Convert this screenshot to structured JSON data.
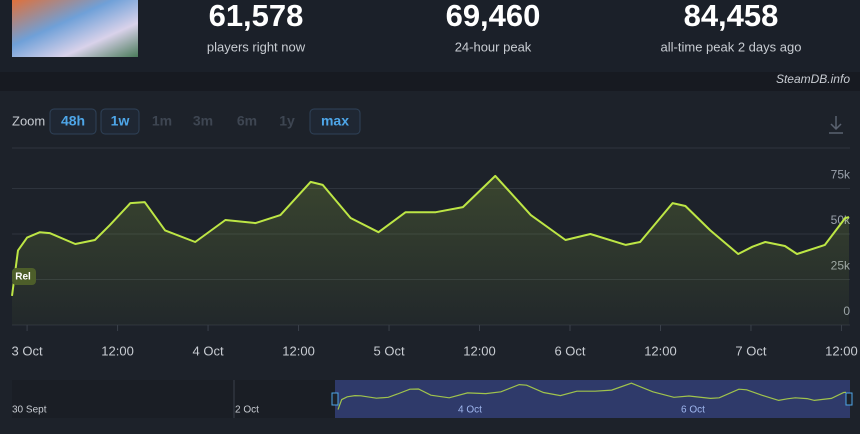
{
  "header": {
    "stats": [
      {
        "value": "61,578",
        "label": "players right now"
      },
      {
        "value": "69,460",
        "label": "24-hour peak"
      },
      {
        "value": "84,458",
        "label": "all-time peak 2 days ago"
      }
    ],
    "watermark": "SteamDB.info"
  },
  "zoom": {
    "label": "Zoom",
    "options": [
      "48h",
      "1w",
      "1m",
      "3m",
      "6m",
      "1y",
      "max"
    ],
    "active": [
      "48h",
      "1w",
      "max"
    ]
  },
  "navigator": {
    "labels": [
      {
        "value": -60,
        "label": "30 Sept"
      },
      {
        "value": -12,
        "label": "2 Oct"
      },
      {
        "value": 36,
        "label": "4 Oct"
      },
      {
        "value": 84,
        "label": "6 Oct"
      }
    ]
  },
  "chart_data": {
    "type": "line",
    "annotation": "Rel",
    "x": [
      -2,
      -1.2,
      0,
      1.7,
      3,
      6.4,
      9,
      11,
      13.7,
      15.6,
      18.3,
      22.3,
      26.3,
      30.3,
      33.6,
      37.6,
      39.2,
      42.9,
      46.6,
      50.2,
      54.2,
      57.8,
      62.1,
      66.8,
      71.4,
      74.7,
      79.4,
      81.3,
      85.6,
      87.3,
      90.6,
      94.3,
      96.2,
      97.9,
      100.5,
      102.1,
      105.8,
      108.5,
      109
    ],
    "series": [
      {
        "name": "Players",
        "color": "#bde645",
        "values": [
          16000,
          41000,
          48000,
          51000,
          50500,
          44500,
          46700,
          55000,
          67000,
          67500,
          52000,
          45600,
          57700,
          56000,
          60400,
          78600,
          77000,
          58800,
          51000,
          62000,
          62000,
          64800,
          81900,
          60400,
          46700,
          50000,
          44000,
          45600,
          67000,
          65400,
          52000,
          39000,
          43000,
          45600,
          43400,
          39000,
          44000,
          58800,
          59300
        ]
      }
    ],
    "xlim": [
      -2,
      109
    ],
    "xticks": [
      {
        "value": 0,
        "label": "3 Oct"
      },
      {
        "value": 12,
        "label": "12:00"
      },
      {
        "value": 24,
        "label": "4 Oct"
      },
      {
        "value": 36,
        "label": "12:00"
      },
      {
        "value": 48,
        "label": "5 Oct"
      },
      {
        "value": 60,
        "label": "12:00"
      },
      {
        "value": 72,
        "label": "6 Oct"
      },
      {
        "value": 84,
        "label": "12:00"
      },
      {
        "value": 96,
        "label": "7 Oct"
      },
      {
        "value": 108,
        "label": "12:00"
      }
    ],
    "ylim": [
      0,
      100000
    ],
    "yticks": [
      {
        "value": 0,
        "label": "0"
      },
      {
        "value": 25000,
        "label": "25k"
      },
      {
        "value": 50000,
        "label": "50k"
      },
      {
        "value": 75000,
        "label": "75k"
      }
    ],
    "grid": true
  }
}
